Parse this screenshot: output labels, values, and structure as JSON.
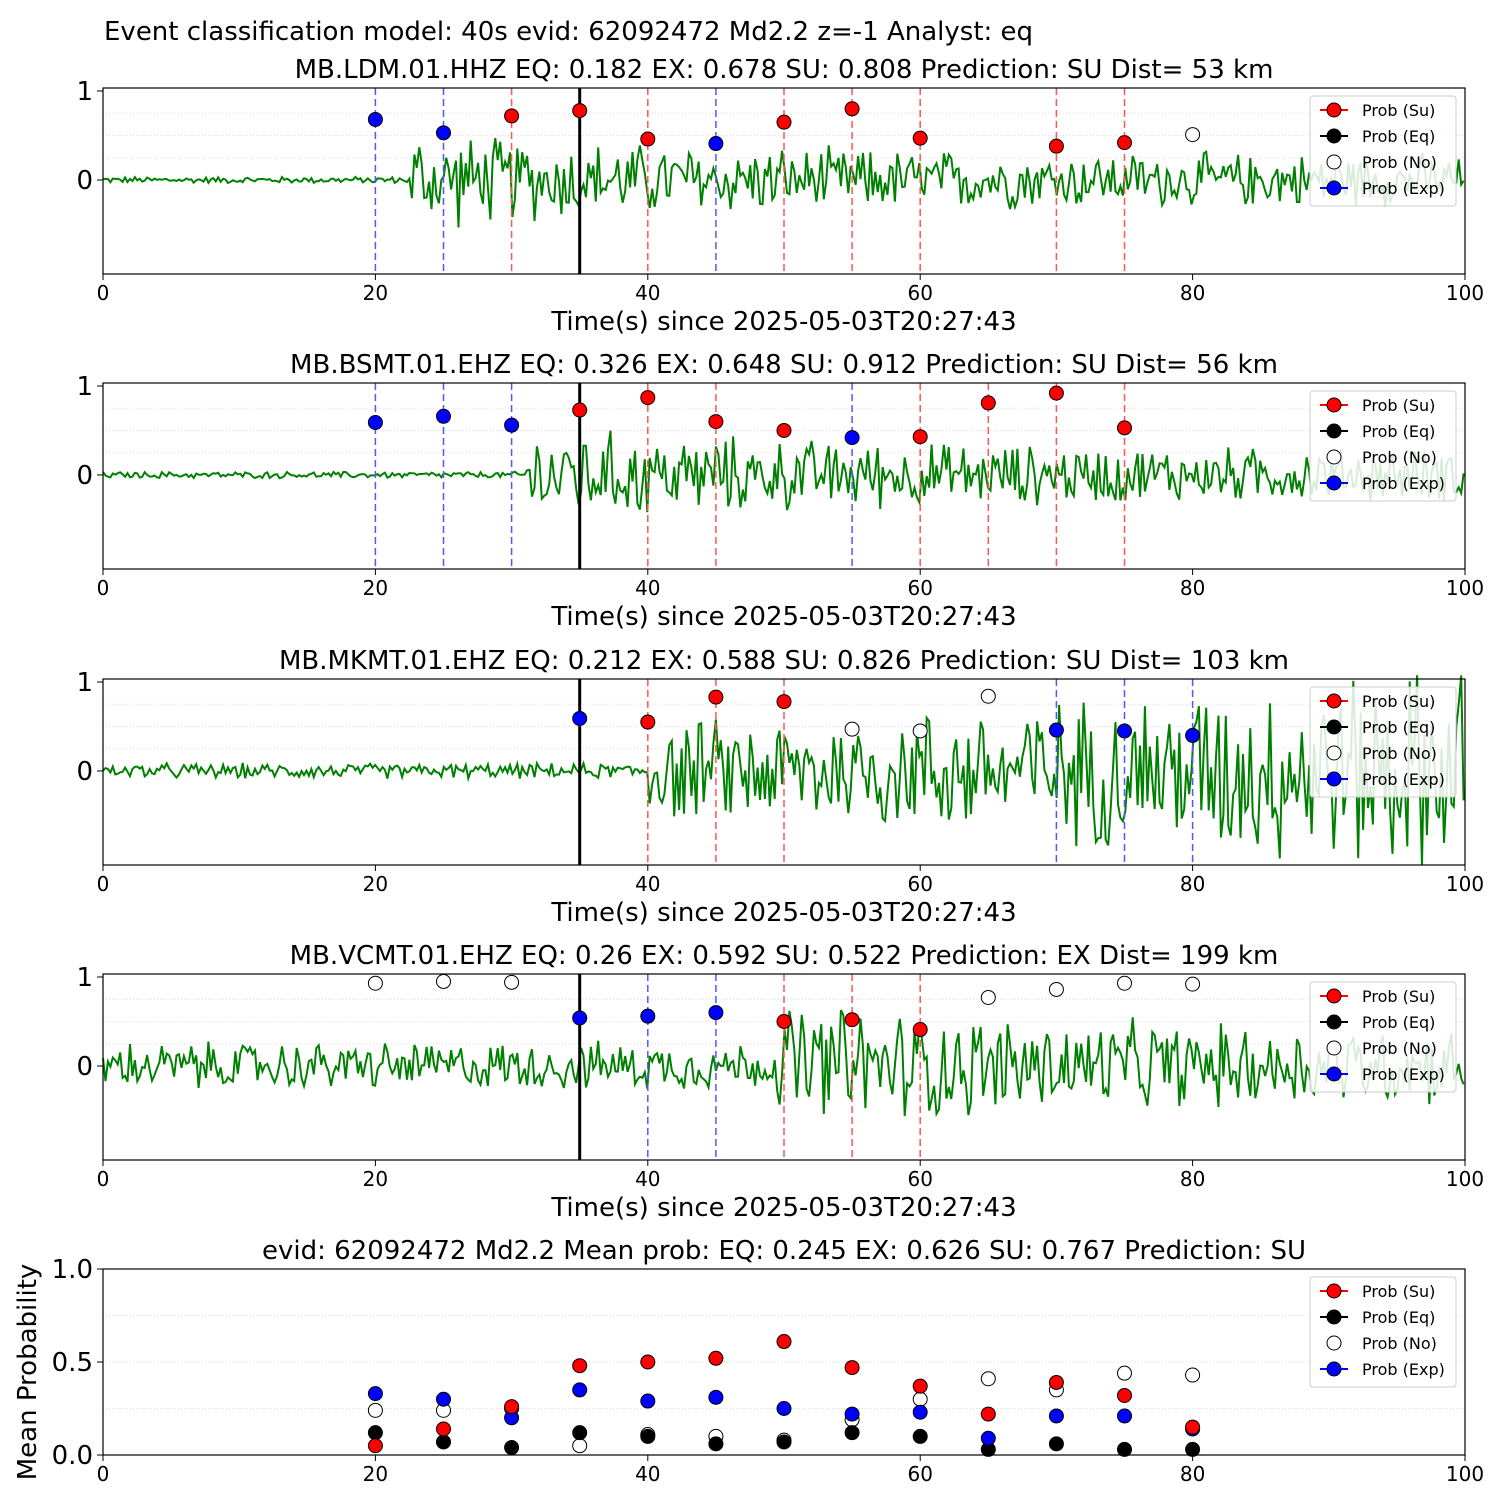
{
  "figure_title": "Event classification model: 40s evid: 62092472 Md2.2 z=-1 Analyst: eq",
  "legend_labels": [
    "Prob (Su)",
    "Prob (Eq)",
    "Prob (No)",
    "Prob (Exp)"
  ],
  "colors": {
    "su": "#ff0000",
    "eq": "#000000",
    "no": "#ffffff",
    "exp": "#0000ff",
    "waveform": "#008000",
    "su_line": "#ff5555",
    "exp_line": "#5555ff"
  },
  "chart_data": [
    {
      "type": "line",
      "title": "MB.LDM.01.HHZ   EQ: 0.182  EX: 0.678  SU: 0.808   Prediction: SU    Dist= 53 km",
      "xlabel": "Time(s) since 2025-05-03T20:27:43",
      "ylabel": "",
      "xlim": [
        0,
        100
      ],
      "x_ticks": [
        "0",
        "20",
        "40",
        "60",
        "80",
        "100"
      ],
      "y_ticks": [
        "0",
        "1"
      ],
      "arrival_time": 35,
      "signal_onset": 22.5,
      "su_windows": [
        30,
        40,
        50,
        55,
        60,
        70,
        75
      ],
      "exp_windows": [
        20,
        25,
        45
      ],
      "points": [
        {
          "x": 20,
          "y": 0.68,
          "cls": "exp"
        },
        {
          "x": 25,
          "y": 0.53,
          "cls": "exp"
        },
        {
          "x": 30,
          "y": 0.72,
          "cls": "su"
        },
        {
          "x": 35,
          "y": 0.78,
          "cls": "su"
        },
        {
          "x": 40,
          "y": 0.46,
          "cls": "su"
        },
        {
          "x": 45,
          "y": 0.41,
          "cls": "exp"
        },
        {
          "x": 50,
          "y": 0.65,
          "cls": "su"
        },
        {
          "x": 55,
          "y": 0.8,
          "cls": "su"
        },
        {
          "x": 60,
          "y": 0.47,
          "cls": "su"
        },
        {
          "x": 70,
          "y": 0.38,
          "cls": "su"
        },
        {
          "x": 75,
          "y": 0.42,
          "cls": "su"
        },
        {
          "x": 80,
          "y": 0.51,
          "cls": "no"
        }
      ]
    },
    {
      "type": "line",
      "title": "MB.BSMT.01.EHZ   EQ: 0.326  EX: 0.648  SU: 0.912   Prediction: SU    Dist= 56 km",
      "xlabel": "Time(s) since 2025-05-03T20:27:43",
      "ylabel": "",
      "xlim": [
        0,
        100
      ],
      "x_ticks": [
        "0",
        "20",
        "40",
        "60",
        "80",
        "100"
      ],
      "y_ticks": [
        "0",
        "1"
      ],
      "arrival_time": 35,
      "signal_onset": 31,
      "su_windows": [
        40,
        45,
        60,
        65,
        70,
        75
      ],
      "exp_windows": [
        20,
        25,
        30,
        55
      ],
      "points": [
        {
          "x": 20,
          "y": 0.59,
          "cls": "exp"
        },
        {
          "x": 25,
          "y": 0.66,
          "cls": "exp"
        },
        {
          "x": 30,
          "y": 0.56,
          "cls": "exp"
        },
        {
          "x": 35,
          "y": 0.73,
          "cls": "su"
        },
        {
          "x": 40,
          "y": 0.87,
          "cls": "su"
        },
        {
          "x": 45,
          "y": 0.6,
          "cls": "su"
        },
        {
          "x": 50,
          "y": 0.5,
          "cls": "su"
        },
        {
          "x": 55,
          "y": 0.42,
          "cls": "exp"
        },
        {
          "x": 60,
          "y": 0.43,
          "cls": "su"
        },
        {
          "x": 65,
          "y": 0.81,
          "cls": "su"
        },
        {
          "x": 70,
          "y": 0.92,
          "cls": "su"
        },
        {
          "x": 75,
          "y": 0.53,
          "cls": "su"
        }
      ]
    },
    {
      "type": "line",
      "title": "MB.MKMT.01.EHZ   EQ: 0.212  EX: 0.588  SU: 0.826   Prediction: SU    Dist= 103 km",
      "xlabel": "Time(s) since 2025-05-03T20:27:43",
      "ylabel": "",
      "xlim": [
        0,
        100
      ],
      "x_ticks": [
        "0",
        "20",
        "40",
        "60",
        "80",
        "100"
      ],
      "y_ticks": [
        "0",
        "1"
      ],
      "arrival_time": 35,
      "signal_onset": 40,
      "su_windows": [
        40,
        45,
        50
      ],
      "exp_windows": [
        70,
        75,
        80
      ],
      "points": [
        {
          "x": 35,
          "y": 0.59,
          "cls": "exp"
        },
        {
          "x": 40,
          "y": 0.55,
          "cls": "su"
        },
        {
          "x": 45,
          "y": 0.83,
          "cls": "su"
        },
        {
          "x": 50,
          "y": 0.78,
          "cls": "su"
        },
        {
          "x": 55,
          "y": 0.47,
          "cls": "no"
        },
        {
          "x": 60,
          "y": 0.45,
          "cls": "no"
        },
        {
          "x": 65,
          "y": 0.84,
          "cls": "no"
        },
        {
          "x": 70,
          "y": 0.46,
          "cls": "exp"
        },
        {
          "x": 75,
          "y": 0.45,
          "cls": "exp"
        },
        {
          "x": 80,
          "y": 0.4,
          "cls": "exp"
        }
      ]
    },
    {
      "type": "line",
      "title": "MB.VCMT.01.EHZ   EQ: 0.26  EX: 0.592  SU: 0.522   Prediction: EX    Dist= 199 km",
      "xlabel": "Time(s) since 2025-05-03T20:27:43",
      "ylabel": "",
      "xlim": [
        0,
        100
      ],
      "x_ticks": [
        "0",
        "20",
        "40",
        "60",
        "80",
        "100"
      ],
      "y_ticks": [
        "0",
        "1"
      ],
      "arrival_time": 35,
      "signal_onset": 49.5,
      "su_windows": [
        50,
        55,
        60
      ],
      "exp_windows": [
        40,
        45
      ],
      "points": [
        {
          "x": 20,
          "y": 0.93,
          "cls": "no"
        },
        {
          "x": 25,
          "y": 0.95,
          "cls": "no"
        },
        {
          "x": 30,
          "y": 0.94,
          "cls": "no"
        },
        {
          "x": 35,
          "y": 0.54,
          "cls": "exp"
        },
        {
          "x": 40,
          "y": 0.56,
          "cls": "exp"
        },
        {
          "x": 45,
          "y": 0.6,
          "cls": "exp"
        },
        {
          "x": 50,
          "y": 0.5,
          "cls": "su"
        },
        {
          "x": 55,
          "y": 0.52,
          "cls": "su"
        },
        {
          "x": 60,
          "y": 0.41,
          "cls": "su"
        },
        {
          "x": 65,
          "y": 0.77,
          "cls": "no"
        },
        {
          "x": 70,
          "y": 0.86,
          "cls": "no"
        },
        {
          "x": 75,
          "y": 0.93,
          "cls": "no"
        },
        {
          "x": 80,
          "y": 0.92,
          "cls": "no"
        }
      ]
    },
    {
      "type": "scatter",
      "title": "evid: 62092472  Md2.2   Mean prob:   EQ: 0.245  EX: 0.626  SU: 0.767   Prediction: SU",
      "xlabel": "",
      "ylabel": "Mean Probability",
      "xlim": [
        0,
        100
      ],
      "ylim": [
        0,
        1
      ],
      "x_ticks": [
        "0",
        "20",
        "40",
        "60",
        "80",
        "100"
      ],
      "y_ticks": [
        "0.0",
        "0.5",
        "1.0"
      ],
      "x": [
        20,
        25,
        30,
        35,
        40,
        45,
        50,
        55,
        60,
        65,
        70,
        75,
        80
      ],
      "series": [
        {
          "name": "Prob (No)",
          "cls": "no",
          "values": [
            0.24,
            0.24,
            0.25,
            0.05,
            0.11,
            0.1,
            0.08,
            0.19,
            0.3,
            0.41,
            0.35,
            0.44,
            0.43
          ]
        },
        {
          "name": "Prob (Eq)",
          "cls": "eq",
          "values": [
            0.12,
            0.07,
            0.04,
            0.12,
            0.1,
            0.06,
            0.07,
            0.12,
            0.1,
            0.03,
            0.06,
            0.03,
            0.03
          ]
        },
        {
          "name": "Prob (Exp)",
          "cls": "exp",
          "values": [
            0.33,
            0.3,
            0.2,
            0.35,
            0.29,
            0.31,
            0.25,
            0.22,
            0.23,
            0.09,
            0.21,
            0.21,
            0.14
          ]
        },
        {
          "name": "Prob (Su)",
          "cls": "su",
          "values": [
            0.05,
            0.14,
            0.26,
            0.48,
            0.5,
            0.52,
            0.61,
            0.47,
            0.37,
            0.22,
            0.39,
            0.32,
            0.15
          ]
        }
      ]
    }
  ]
}
